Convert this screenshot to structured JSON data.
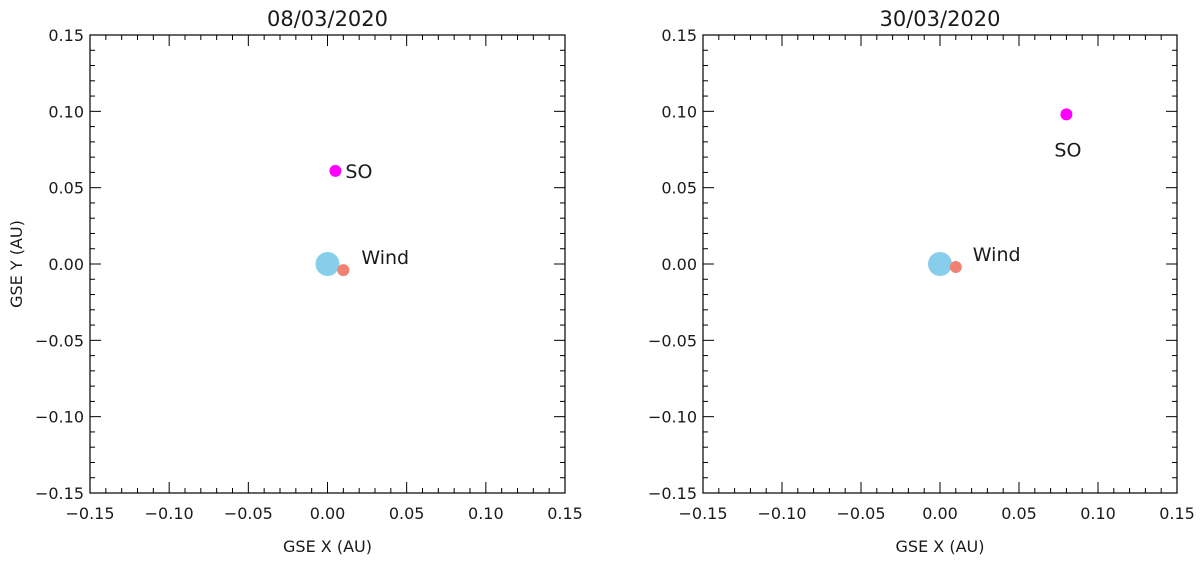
{
  "chart_data": [
    {
      "type": "scatter",
      "title": "08/03/2020",
      "xlabel": "GSE X (AU)",
      "ylabel": "GSE Y (AU)",
      "xlim": [
        -0.15,
        0.15
      ],
      "ylim": [
        -0.15,
        0.15
      ],
      "xticks": [
        "−0.15",
        "−0.10",
        "−0.05",
        "0.00",
        "0.05",
        "0.10",
        "0.15"
      ],
      "yticks": [
        "−0.15",
        "−0.10",
        "−0.05",
        "0.00",
        "0.05",
        "0.10",
        "0.15"
      ],
      "grid": false,
      "points": [
        {
          "label": "",
          "x": 0.0,
          "y": 0.0,
          "color": "#87ceeb",
          "size": "large"
        },
        {
          "label": "Wind",
          "x": 0.01,
          "y": -0.004,
          "color": "#f08272",
          "size": "small"
        },
        {
          "label": "SO",
          "x": 0.005,
          "y": 0.061,
          "color": "#ff00ff",
          "size": "small"
        }
      ]
    },
    {
      "type": "scatter",
      "title": "30/03/2020",
      "xlabel": "GSE X (AU)",
      "ylabel": "",
      "xlim": [
        -0.15,
        0.15
      ],
      "ylim": [
        -0.15,
        0.15
      ],
      "xticks": [
        "−0.15",
        "−0.10",
        "−0.05",
        "0.00",
        "0.05",
        "0.10",
        "0.15"
      ],
      "yticks": [
        "−0.15",
        "−0.10",
        "−0.05",
        "0.00",
        "0.05",
        "0.10",
        "0.15"
      ],
      "grid": false,
      "points": [
        {
          "label": "",
          "x": 0.0,
          "y": 0.0,
          "color": "#87ceeb",
          "size": "large"
        },
        {
          "label": "Wind",
          "x": 0.01,
          "y": -0.002,
          "color": "#f08272",
          "size": "small"
        },
        {
          "label": "SO",
          "x": 0.08,
          "y": 0.098,
          "color": "#ff00ff",
          "size": "small"
        }
      ]
    }
  ]
}
